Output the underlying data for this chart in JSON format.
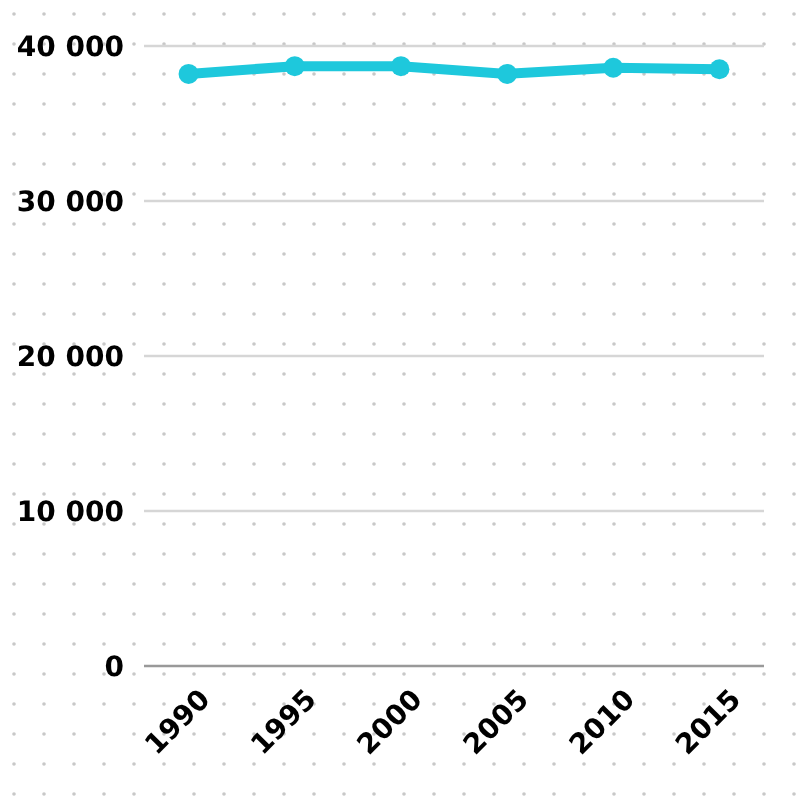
{
  "chart_data": {
    "type": "line",
    "categories": [
      "1990",
      "1995",
      "2000",
      "2005",
      "2010",
      "2015"
    ],
    "series": [
      {
        "color": "#1ec8dc",
        "values": [
          38200,
          38700,
          38700,
          38200,
          38600,
          38500
        ]
      }
    ],
    "ylim": [
      0,
      40000
    ],
    "yticks": [
      {
        "value": 0,
        "label": "0"
      },
      {
        "value": 10000,
        "label": "10 000"
      },
      {
        "value": 20000,
        "label": "20 000"
      },
      {
        "value": 30000,
        "label": "30 000"
      },
      {
        "value": 40000,
        "label": "40 000"
      }
    ],
    "grid": "y",
    "marker": "circle",
    "line_style": "solid"
  }
}
